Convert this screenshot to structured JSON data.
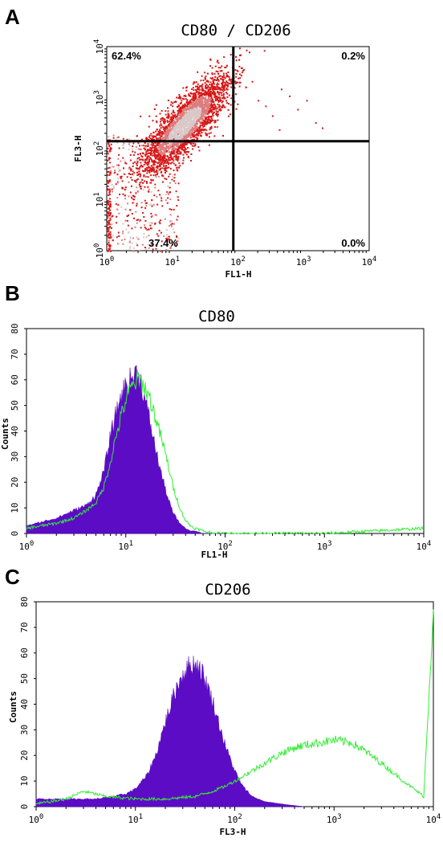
{
  "figure": {
    "panels": [
      {
        "letter": "A",
        "title": "CD80 / CD206",
        "xlabel": "FL1-H",
        "ylabel": "FL3-H",
        "quadrants": {
          "upper_left": "62.4%",
          "upper_right": "0.2%",
          "lower_left": "37.4%",
          "lower_right": "0.0%"
        }
      },
      {
        "letter": "B",
        "title": "CD80",
        "xlabel": "FL1-H",
        "ylabel": "Counts"
      },
      {
        "letter": "C",
        "title": "CD206",
        "xlabel": "FL3-H",
        "ylabel": "Counts"
      }
    ]
  },
  "colors": {
    "filled_histogram": "#5b0cc4",
    "overlay_line": "#33ee33",
    "density_high": "#d9c8c8",
    "density_low": "#d81818",
    "gate_lines": "#000000"
  },
  "chart_data": [
    {
      "type": "scatter",
      "subtype": "density",
      "title": "CD80 / CD206",
      "xlabel": "FL1-H",
      "ylabel": "FL3-H",
      "xscale": "log",
      "yscale": "log",
      "xlim": [
        1,
        10000
      ],
      "ylim": [
        1,
        10000
      ],
      "x_ticks": [
        "10^0",
        "10^1",
        "10^2",
        "10^3",
        "10^4"
      ],
      "y_ticks": [
        "10^0",
        "10^1",
        "10^2",
        "10^3",
        "10^4"
      ],
      "gates": {
        "x": 85,
        "y": 140
      },
      "quadrant_percentages": {
        "upper_left": 62.4,
        "upper_right": 0.2,
        "lower_left": 37.4,
        "lower_right": 0.0
      },
      "population_center": {
        "x": 15,
        "y": 300
      }
    },
    {
      "type": "area",
      "title": "CD80",
      "xlabel": "FL1-H",
      "ylabel": "Counts",
      "xscale": "log",
      "xlim": [
        1,
        10000
      ],
      "ylim": [
        0,
        80
      ],
      "y_ticks": [
        0,
        10,
        20,
        30,
        40,
        50,
        60,
        70,
        80
      ],
      "x_ticks": [
        "10^0",
        "10^1",
        "10^2",
        "10^3",
        "10^4"
      ],
      "series": [
        {
          "style": "filled",
          "x": [
            1,
            2,
            3,
            4,
            5,
            6,
            7,
            8,
            9,
            10,
            11,
            12,
            13,
            14,
            15,
            17,
            19,
            21,
            24,
            27,
            30,
            35,
            40,
            45,
            50,
            60,
            80,
            100
          ],
          "y": [
            3,
            6,
            9,
            11,
            15,
            24,
            38,
            47,
            54,
            58,
            60,
            62,
            63,
            60,
            55,
            46,
            37,
            29,
            20,
            13,
            8,
            4,
            2,
            1,
            1,
            0,
            0,
            0
          ]
        },
        {
          "style": "line",
          "x": [
            1,
            2,
            3,
            4,
            5,
            6,
            7,
            8,
            9,
            10,
            11,
            12,
            13,
            14,
            15,
            17,
            19,
            21,
            24,
            27,
            30,
            35,
            40,
            45,
            50,
            60,
            80,
            100,
            1000,
            10000
          ],
          "y": [
            2,
            4,
            6,
            9,
            12,
            18,
            28,
            38,
            46,
            52,
            56,
            58,
            60,
            60,
            58,
            54,
            48,
            42,
            34,
            26,
            18,
            10,
            5,
            3,
            2,
            1,
            0,
            0,
            0,
            2
          ]
        }
      ]
    },
    {
      "type": "area",
      "title": "CD206",
      "xlabel": "FL3-H",
      "ylabel": "Counts",
      "xscale": "log",
      "xlim": [
        1,
        10000
      ],
      "ylim": [
        0,
        80
      ],
      "y_ticks": [
        0,
        10,
        20,
        30,
        40,
        50,
        60,
        70,
        80
      ],
      "x_ticks": [
        "10^0",
        "10^1",
        "10^2",
        "10^3",
        "10^4"
      ],
      "series": [
        {
          "style": "filled",
          "x": [
            1,
            2,
            4,
            6,
            8,
            10,
            13,
            16,
            20,
            25,
            30,
            35,
            40,
            45,
            50,
            60,
            70,
            80,
            100,
            120,
            150,
            200,
            300,
            500
          ],
          "y": [
            3,
            3,
            3,
            4,
            5,
            7,
            12,
            20,
            33,
            45,
            52,
            55,
            56,
            54,
            50,
            41,
            32,
            24,
            14,
            8,
            4,
            2,
            1,
            0
          ]
        },
        {
          "style": "line",
          "x": [
            1,
            2,
            3,
            5,
            10,
            20,
            40,
            60,
            80,
            100,
            150,
            200,
            300,
            400,
            500,
            700,
            1000,
            1500,
            2000,
            3000,
            5000,
            8000,
            10000
          ],
          "y": [
            1,
            3,
            6,
            4,
            3,
            3,
            4,
            6,
            8,
            10,
            14,
            17,
            21,
            23,
            24,
            25,
            26,
            25,
            22,
            17,
            10,
            4,
            78
          ]
        }
      ]
    }
  ]
}
